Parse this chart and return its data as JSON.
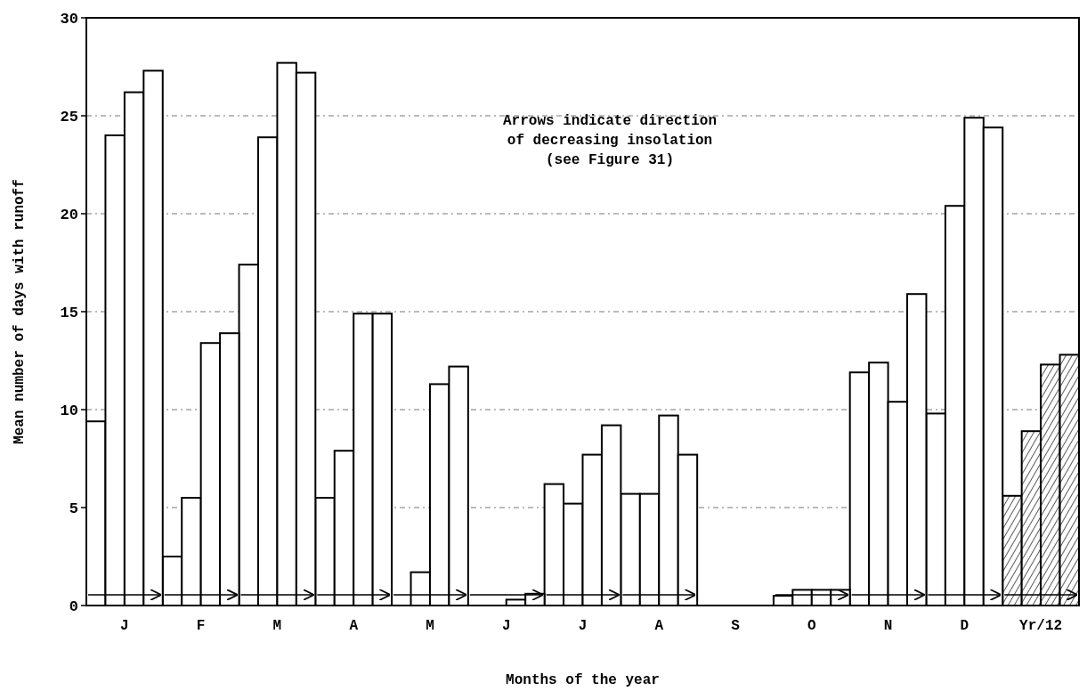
{
  "chart_data": {
    "type": "bar",
    "xlabel": "Months of the year",
    "ylabel": "Mean number of days with runoff",
    "categories": [
      "J",
      "F",
      "M",
      "A",
      "M",
      "J",
      "J",
      "A",
      "S",
      "O",
      "N",
      "D",
      "Yr/12"
    ],
    "series": [
      {
        "color": "#000000",
        "colors": [
          "#ffffff",
          "#ffffff",
          "#ffffff",
          "#ffffff",
          null,
          null,
          "#ffffff",
          "#ffffff",
          null,
          "#ffffff",
          "#ffffff",
          "#ffffff",
          "#000000"
        ],
        "values": [
          9.4,
          2.5,
          17.4,
          5.5,
          null,
          null,
          6.2,
          5.7,
          null,
          0.5,
          11.9,
          9.8,
          5.6
        ]
      },
      {
        "color": "#000000",
        "colors": [
          "#ffffff",
          "#ffffff",
          "#ffffff",
          "#ffffff",
          "#ffffff",
          null,
          "#ffffff",
          "#ffffff",
          null,
          "#ffffff",
          "#ffffff",
          "#ffffff",
          "#000000"
        ],
        "values": [
          24.0,
          5.5,
          23.9,
          7.9,
          1.7,
          null,
          5.2,
          5.7,
          null,
          0.8,
          12.4,
          20.4,
          8.9
        ]
      },
      {
        "color": "#000000",
        "colors": [
          "#ffffff",
          "#ffffff",
          "#ffffff",
          "#ffffff",
          "#ffffff",
          "#ffffff",
          "#ffffff",
          "#ffffff",
          null,
          "#ffffff",
          "#ffffff",
          "#ffffff",
          "#000000"
        ],
        "values": [
          26.2,
          13.4,
          27.7,
          14.9,
          11.3,
          0.3,
          7.7,
          9.7,
          null,
          0.8,
          10.4,
          24.9,
          12.3
        ]
      },
      {
        "color": "#000000",
        "colors": [
          "#ffffff",
          "#ffffff",
          "#ffffff",
          "#ffffff",
          "#ffffff",
          "#ffffff",
          "#ffffff",
          "#ffffff",
          null,
          "#ffffff",
          "#ffffff",
          "#ffffff",
          "#000000"
        ],
        "values": [
          27.3,
          13.9,
          27.2,
          14.9,
          12.2,
          0.6,
          9.2,
          7.7,
          null,
          0.8,
          15.9,
          24.4,
          12.8
        ]
      }
    ],
    "ylim": [
      0,
      30
    ],
    "yticks": [
      0,
      5,
      10,
      15,
      20,
      25,
      30
    ],
    "grid": "y",
    "annotations": [
      "Arrows indicate direction\nof decreasing insolation\n(see Figure 31)"
    ]
  }
}
